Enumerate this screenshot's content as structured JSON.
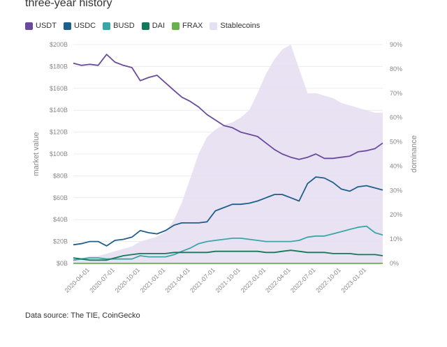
{
  "title": "three-year history",
  "source": "Data source: The TIE, CoinGecko",
  "chart_data": {
    "type": "line",
    "ylabel": "market value",
    "y2label": "dominance",
    "y_ticks": [
      "$0B",
      "$20B",
      "$40B",
      "$60B",
      "$80B",
      "$100B",
      "$120B",
      "$140B",
      "$160B",
      "$180B",
      "$200B"
    ],
    "y2_ticks": [
      "0%",
      "10%",
      "20%",
      "30%",
      "40%",
      "50%",
      "60%",
      "70%",
      "80%",
      "90%"
    ],
    "ylim": [
      0,
      200
    ],
    "y2lim": [
      0,
      90
    ],
    "x_ticks": [
      "2020-04-01",
      "2020-07-01",
      "2020-10-01",
      "2021-01-01",
      "2021-04-01",
      "2021-07-01",
      "2021-10-01",
      "2022-01-01",
      "2022-04-01",
      "2022-07-01",
      "2022-10-01",
      "2023-01-01"
    ],
    "x": [
      "2020-02-01",
      "2020-03-01",
      "2020-04-01",
      "2020-05-01",
      "2020-06-01",
      "2020-07-01",
      "2020-08-01",
      "2020-09-01",
      "2020-10-01",
      "2020-11-01",
      "2020-12-01",
      "2021-01-01",
      "2021-02-01",
      "2021-03-01",
      "2021-04-01",
      "2021-05-01",
      "2021-06-01",
      "2021-07-01",
      "2021-08-01",
      "2021-09-01",
      "2021-10-01",
      "2021-11-01",
      "2021-12-01",
      "2022-01-01",
      "2022-02-01",
      "2022-03-01",
      "2022-04-01",
      "2022-05-01",
      "2022-06-01",
      "2022-07-01",
      "2022-08-01",
      "2022-09-01",
      "2022-10-01",
      "2022-11-01",
      "2022-12-01",
      "2023-01-01",
      "2023-02-01",
      "2023-03-01"
    ],
    "series": [
      {
        "name": "USDT",
        "color": "#6a4a9c",
        "axis": "left",
        "values": [
          183,
          181,
          182,
          181,
          191,
          184,
          181,
          179,
          167,
          170,
          172,
          165,
          158,
          152,
          148,
          143,
          136,
          131,
          126,
          124,
          120,
          118,
          116,
          110,
          104,
          100,
          97,
          95,
          97,
          100,
          96,
          96,
          97,
          98,
          102,
          103,
          105,
          110
        ]
      },
      {
        "name": "USDC",
        "color": "#1f5f8b",
        "axis": "left",
        "values": [
          17,
          18,
          20,
          20,
          16,
          21,
          22,
          24,
          30,
          28,
          27,
          30,
          35,
          37,
          37,
          37,
          38,
          48,
          51,
          54,
          54,
          55,
          57,
          60,
          63,
          63,
          60,
          57,
          73,
          79,
          78,
          74,
          68,
          66,
          70,
          71,
          69,
          67
        ]
      },
      {
        "name": "BUSD",
        "color": "#3aa6a6",
        "axis": "left",
        "values": [
          3,
          4,
          5,
          5,
          4,
          4,
          4,
          4,
          7,
          6,
          6,
          6,
          8,
          11,
          14,
          18,
          20,
          21,
          22,
          23,
          23,
          22,
          21,
          20,
          20,
          20,
          20,
          21,
          24,
          25,
          25,
          27,
          29,
          31,
          33,
          34,
          28,
          26
        ]
      },
      {
        "name": "DAI",
        "color": "#16775b",
        "axis": "left",
        "values": [
          5,
          4,
          3,
          3,
          3,
          5,
          7,
          8,
          9,
          9,
          9,
          9,
          10,
          10,
          10,
          10,
          10,
          11,
          11,
          11,
          11,
          11,
          11,
          10,
          10,
          11,
          12,
          11,
          10,
          10,
          10,
          9,
          9,
          9,
          8,
          8,
          8,
          7
        ]
      },
      {
        "name": "FRAX",
        "color": "#6ab04c",
        "axis": "left",
        "values": [
          0,
          0,
          0,
          0,
          0,
          0,
          0,
          0,
          0,
          0,
          0,
          0,
          0,
          0,
          0,
          0,
          0,
          0,
          0,
          0,
          0,
          0,
          0,
          0,
          0,
          0,
          0,
          0,
          0,
          0,
          0,
          0,
          0,
          0,
          0,
          0,
          0,
          0
        ]
      },
      {
        "name": "Stablecoins",
        "color": "#e6dff2",
        "axis": "right",
        "type": "area",
        "values": [
          2,
          2,
          3,
          3,
          4,
          5,
          6,
          7,
          9,
          10,
          11,
          13,
          18,
          25,
          35,
          45,
          52,
          55,
          57,
          58,
          60,
          63,
          70,
          78,
          84,
          88,
          90,
          80,
          70,
          70,
          69,
          68,
          66,
          65,
          64,
          63,
          62,
          62
        ]
      }
    ]
  }
}
